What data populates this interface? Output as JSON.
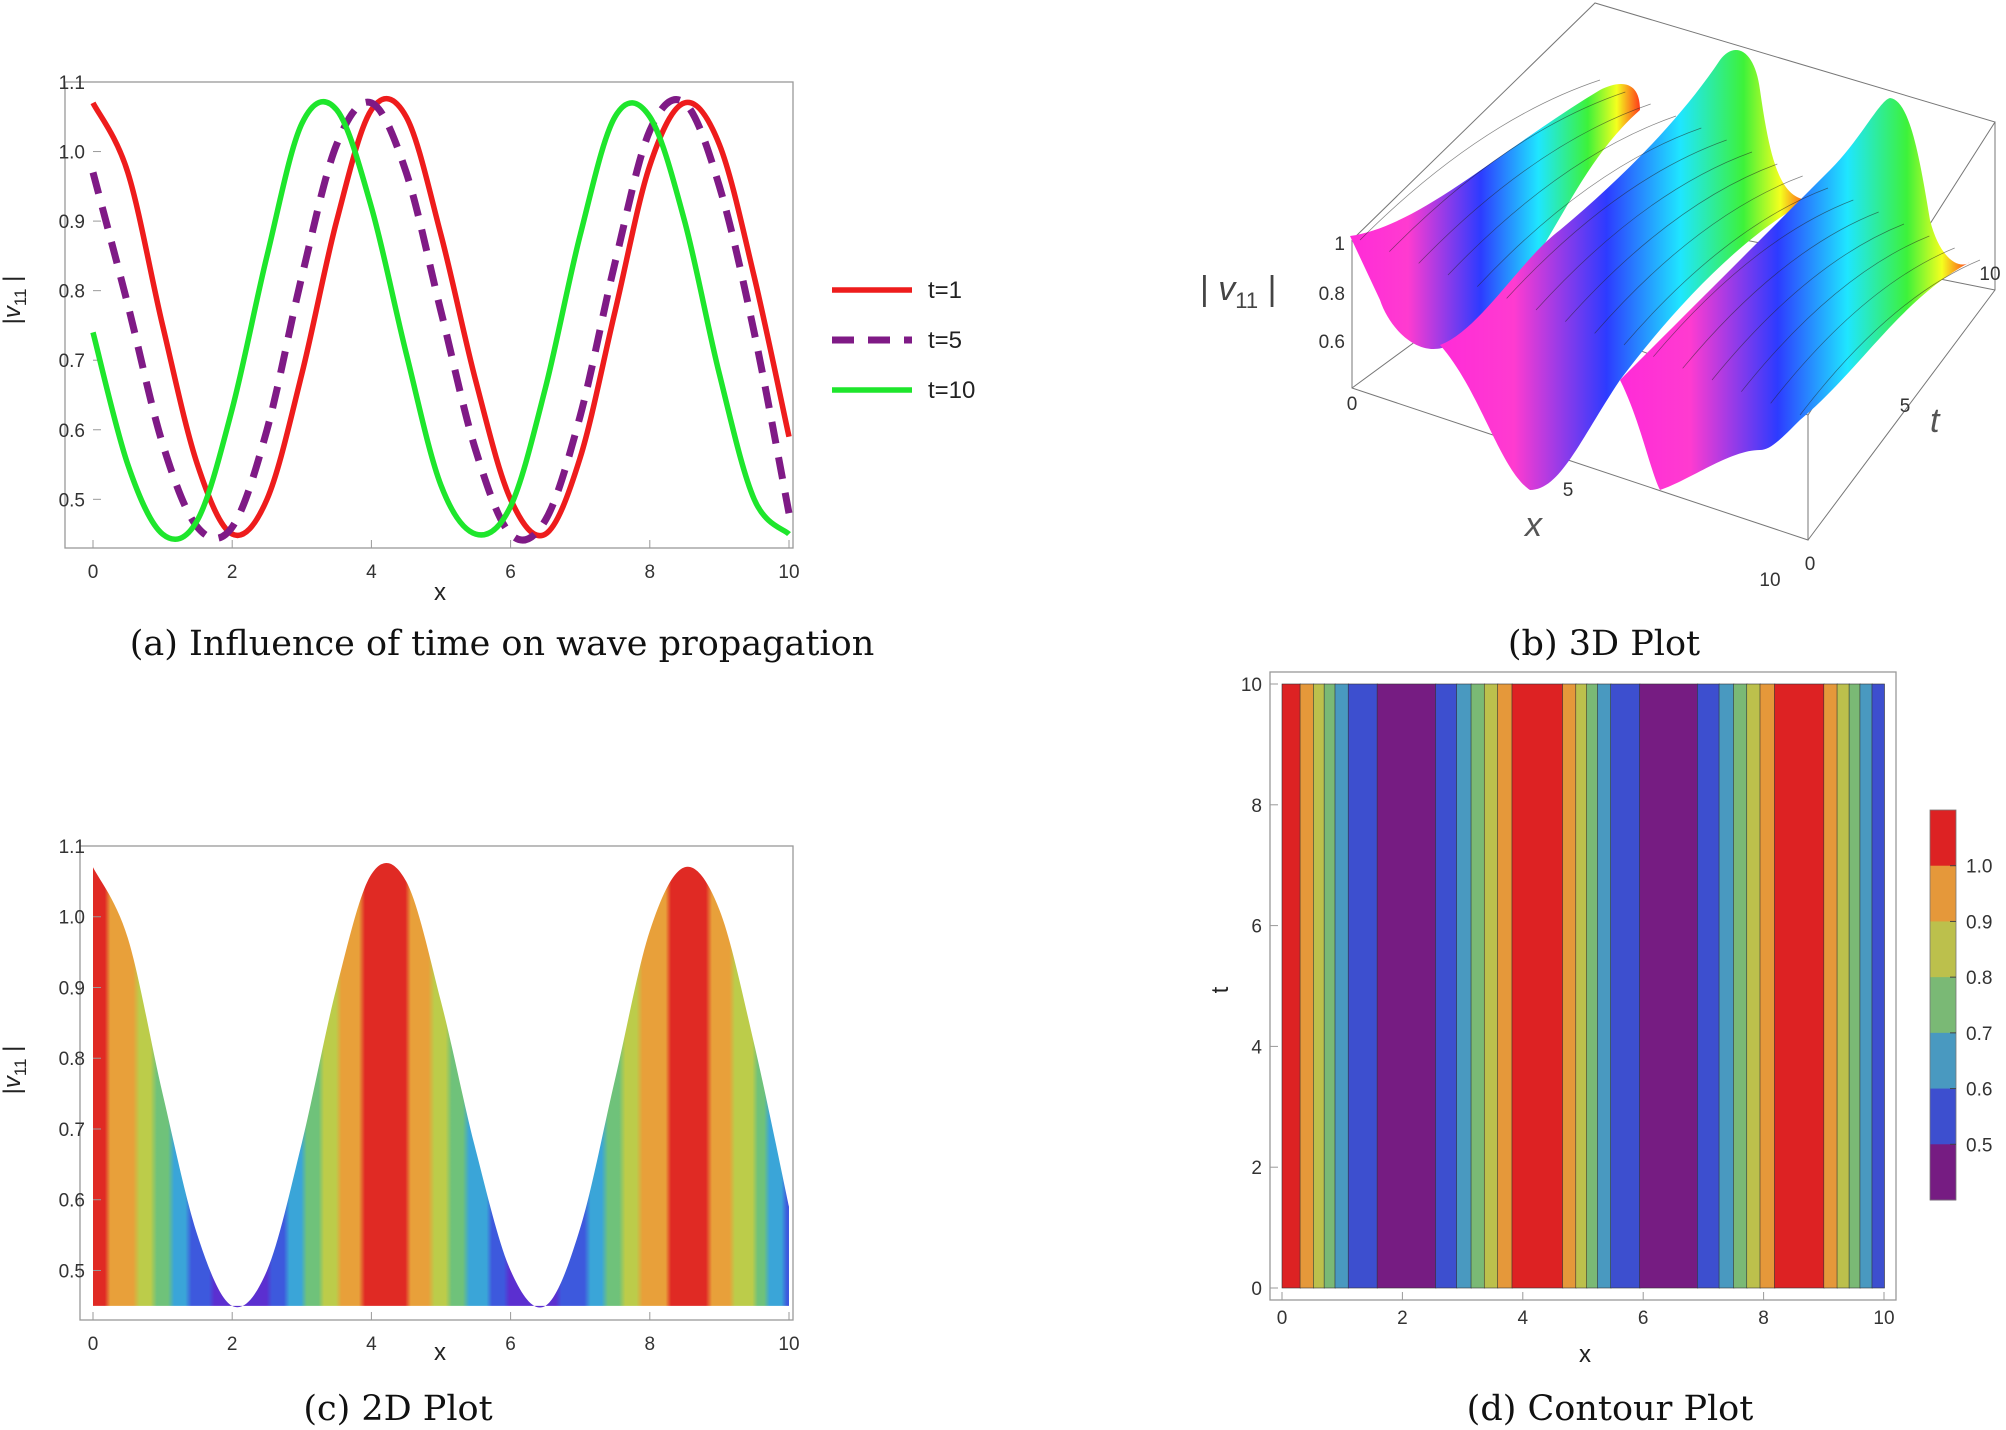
{
  "captions": {
    "a": "(a) Influence of time on wave propagation",
    "b": "(b) 3D Plot",
    "c": "(c) 2D Plot",
    "d": "(d) Contour Plot"
  },
  "colors": {
    "t1": "#ee1c1c",
    "t5": "#7f1a86",
    "t10": "#1ee62c",
    "frame": "#999999"
  },
  "chart_data": [
    {
      "id": "a",
      "type": "line",
      "xlabel": "x",
      "ylabel": "|v11|",
      "xlim": [
        0,
        10
      ],
      "ylim": [
        0.43,
        1.1
      ],
      "xticks": [
        0,
        2,
        4,
        6,
        8,
        10
      ],
      "yticks": [
        0.5,
        0.6,
        0.7,
        0.8,
        0.9,
        1.0,
        1.1
      ],
      "ytick_labels": [
        "0.5",
        "0.6",
        "0.7",
        "0.8",
        "0.9",
        "1.0",
        "1.1"
      ],
      "legend_position": "right",
      "x": [
        0,
        0.5,
        1,
        1.5,
        2,
        2.5,
        3,
        3.5,
        4,
        4.5,
        5,
        5.5,
        6,
        6.5,
        7,
        7.5,
        8,
        8.5,
        9,
        9.5,
        10
      ],
      "series": [
        {
          "name": "t=1",
          "style": "solid",
          "color": "#ee1c1c",
          "values": [
            1.07,
            0.97,
            0.75,
            0.55,
            0.45,
            0.5,
            0.68,
            0.9,
            1.06,
            1.05,
            0.88,
            0.67,
            0.5,
            0.45,
            0.56,
            0.77,
            0.98,
            1.07,
            1.01,
            0.82,
            0.59
          ]
        },
        {
          "name": "t=5",
          "style": "dashed",
          "color": "#7f1a86",
          "values": [
            0.97,
            0.78,
            0.58,
            0.46,
            0.46,
            0.6,
            0.82,
            1.01,
            1.07,
            0.97,
            0.77,
            0.57,
            0.45,
            0.47,
            0.62,
            0.84,
            1.03,
            1.07,
            0.95,
            0.74,
            0.48
          ]
        },
        {
          "name": "t=10",
          "style": "solid",
          "color": "#1ee62c",
          "values": [
            0.74,
            0.55,
            0.45,
            0.47,
            0.63,
            0.85,
            1.04,
            1.06,
            0.92,
            0.71,
            0.52,
            0.45,
            0.49,
            0.66,
            0.88,
            1.05,
            1.05,
            0.9,
            0.68,
            0.5,
            0.45
          ]
        }
      ]
    },
    {
      "id": "b",
      "type": "surface",
      "xlabel": "x",
      "ylabel": "t",
      "zlabel": "|v11|",
      "xticks": [
        0,
        5,
        10
      ],
      "tticks": [
        0,
        5,
        10
      ],
      "zticks": [
        0.6,
        0.8,
        1.0
      ],
      "xlim": [
        0,
        10
      ],
      "tlim": [
        0,
        10
      ],
      "zlim": [
        0.45,
        1.08
      ]
    },
    {
      "id": "c",
      "type": "area",
      "xlabel": "x",
      "ylabel": "|v11|",
      "xlim": [
        0,
        10
      ],
      "ylim": [
        0.43,
        1.1
      ],
      "baseline": 0.45,
      "xticks": [
        0,
        2,
        4,
        6,
        8,
        10
      ],
      "yticks": [
        0.5,
        0.6,
        0.7,
        0.8,
        0.9,
        1.0,
        1.1
      ],
      "ytick_labels": [
        "0.5",
        "0.6",
        "0.7",
        "0.8",
        "0.9",
        "1.0",
        "1.1"
      ],
      "x": [
        0,
        0.5,
        1,
        1.5,
        2,
        2.5,
        3,
        3.5,
        4,
        4.5,
        5,
        5.5,
        6,
        6.5,
        7,
        7.5,
        8,
        8.5,
        9,
        9.5,
        10
      ],
      "values": [
        1.07,
        0.97,
        0.75,
        0.55,
        0.45,
        0.5,
        0.68,
        0.9,
        1.06,
        1.05,
        0.88,
        0.67,
        0.5,
        0.45,
        0.56,
        0.77,
        0.98,
        1.07,
        1.01,
        0.82,
        0.59
      ]
    },
    {
      "id": "d",
      "type": "heatmap",
      "xlabel": "x",
      "ylabel": "t",
      "xlim": [
        0,
        10
      ],
      "ylim": [
        0,
        10
      ],
      "xticks": [
        0,
        2,
        4,
        6,
        8,
        10
      ],
      "yticks": [
        0,
        2,
        4,
        6,
        8,
        10
      ],
      "legend_position": "right",
      "legend_ticks": [
        "0.5",
        "0.6",
        "0.7",
        "0.8",
        "0.9",
        "1.0"
      ],
      "level_colors": [
        "#761c82",
        "#3d4fcf",
        "#4999c0",
        "#7ab975",
        "#bcc04c",
        "#e5983a",
        "#dd2223"
      ],
      "bands": [
        {
          "x0": 0.0,
          "x1": 0.3,
          "level": 6
        },
        {
          "x0": 0.3,
          "x1": 0.52,
          "level": 5
        },
        {
          "x0": 0.52,
          "x1": 0.7,
          "level": 4
        },
        {
          "x0": 0.7,
          "x1": 0.88,
          "level": 3
        },
        {
          "x0": 0.88,
          "x1": 1.1,
          "level": 2
        },
        {
          "x0": 1.1,
          "x1": 1.58,
          "level": 1
        },
        {
          "x0": 1.58,
          "x1": 2.55,
          "level": 0
        },
        {
          "x0": 2.55,
          "x1": 2.9,
          "level": 1
        },
        {
          "x0": 2.9,
          "x1": 3.14,
          "level": 2
        },
        {
          "x0": 3.14,
          "x1": 3.36,
          "level": 3
        },
        {
          "x0": 3.36,
          "x1": 3.58,
          "level": 4
        },
        {
          "x0": 3.58,
          "x1": 3.82,
          "level": 5
        },
        {
          "x0": 3.82,
          "x1": 4.66,
          "level": 6
        },
        {
          "x0": 4.66,
          "x1": 4.88,
          "level": 5
        },
        {
          "x0": 4.88,
          "x1": 5.06,
          "level": 4
        },
        {
          "x0": 5.06,
          "x1": 5.24,
          "level": 3
        },
        {
          "x0": 5.24,
          "x1": 5.46,
          "level": 2
        },
        {
          "x0": 5.46,
          "x1": 5.94,
          "level": 1
        },
        {
          "x0": 5.94,
          "x1": 6.9,
          "level": 0
        },
        {
          "x0": 6.9,
          "x1": 7.26,
          "level": 1
        },
        {
          "x0": 7.26,
          "x1": 7.5,
          "level": 2
        },
        {
          "x0": 7.5,
          "x1": 7.72,
          "level": 3
        },
        {
          "x0": 7.72,
          "x1": 7.94,
          "level": 4
        },
        {
          "x0": 7.94,
          "x1": 8.18,
          "level": 5
        },
        {
          "x0": 8.18,
          "x1": 9.0,
          "level": 6
        },
        {
          "x0": 9.0,
          "x1": 9.22,
          "level": 5
        },
        {
          "x0": 9.22,
          "x1": 9.42,
          "level": 4
        },
        {
          "x0": 9.42,
          "x1": 9.6,
          "level": 3
        },
        {
          "x0": 9.6,
          "x1": 9.8,
          "level": 2
        },
        {
          "x0": 9.8,
          "x1": 10.0,
          "level": 1
        }
      ]
    }
  ]
}
